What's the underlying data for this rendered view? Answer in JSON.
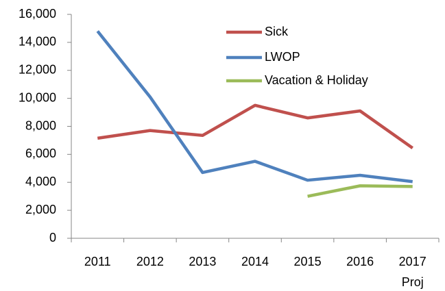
{
  "chart_data": {
    "type": "line",
    "categories": [
      "2011",
      "2012",
      "2013",
      "2014",
      "2015",
      "2016",
      "2017 Proj"
    ],
    "series": [
      {
        "name": "Sick",
        "color": "#c0504d",
        "values": [
          7150,
          7700,
          7350,
          9500,
          8600,
          9100,
          6450
        ]
      },
      {
        "name": "LWOP",
        "color": "#4f81bd",
        "values": [
          14800,
          10100,
          4700,
          5500,
          4150,
          4500,
          4050
        ]
      },
      {
        "name": "Vacation & Holiday",
        "color": "#9bbb59",
        "values": [
          null,
          null,
          null,
          null,
          3000,
          3750,
          3700
        ]
      }
    ],
    "ylim": [
      0,
      16000
    ],
    "yticks": [
      {
        "value": 0,
        "label": "0"
      },
      {
        "value": 2000,
        "label": "2,000"
      },
      {
        "value": 4000,
        "label": "4,000"
      },
      {
        "value": 6000,
        "label": "6,000"
      },
      {
        "value": 8000,
        "label": "8,000"
      },
      {
        "value": 10000,
        "label": "10,000"
      },
      {
        "value": 12000,
        "label": "12,000"
      },
      {
        "value": 14000,
        "label": "14,000"
      },
      {
        "value": 16000,
        "label": "16,000"
      }
    ]
  }
}
